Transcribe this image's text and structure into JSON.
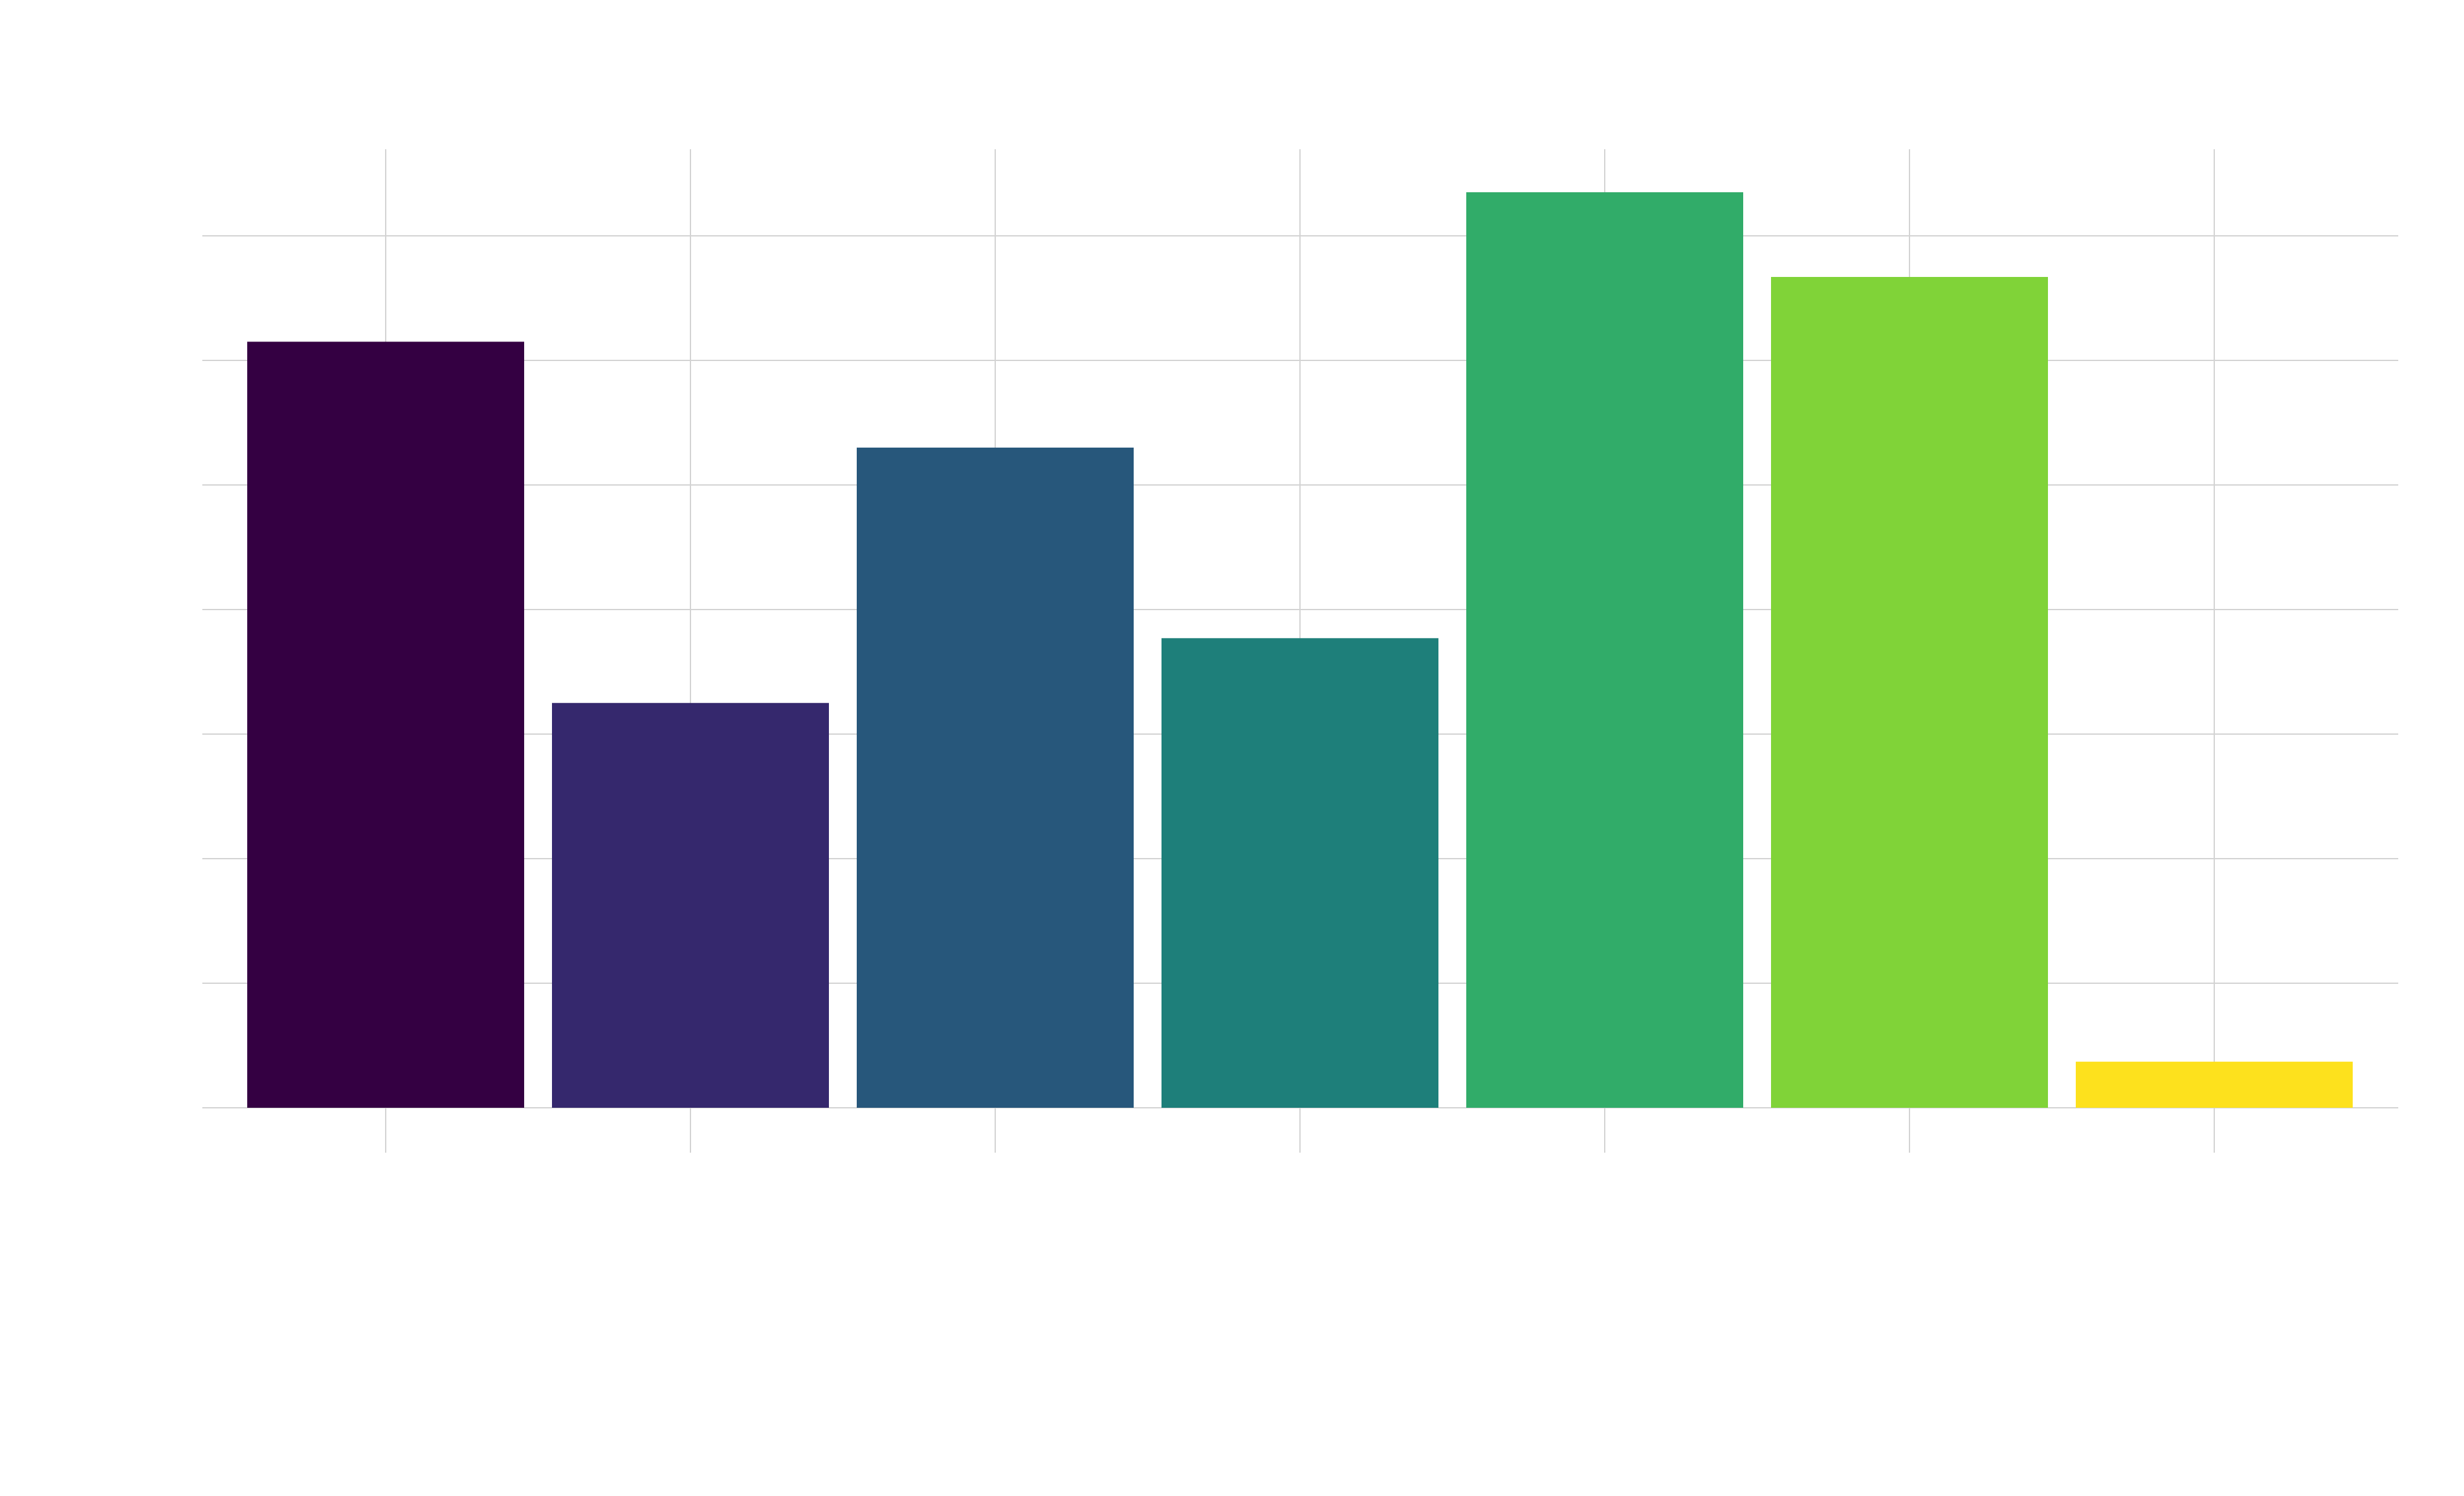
{
  "chart_data": {
    "type": "bar",
    "title": "",
    "xlabel": "",
    "ylabel": "",
    "categories": [
      "",
      "",
      "",
      "",
      "",
      "",
      ""
    ],
    "values": [
      6.15,
      3.25,
      5.3,
      3.77,
      7.35,
      6.67,
      0.37
    ],
    "colors": [
      "#340042",
      "#35286D",
      "#27577B",
      "#1E7F7A",
      "#31AC69",
      "#80D338",
      "#FDE11D"
    ],
    "ylim": [
      0,
      7.7
    ],
    "y_gridlines": [
      0,
      1,
      2,
      3,
      4,
      5,
      6,
      7
    ],
    "grid": true,
    "show_axis_labels": false,
    "legend": "none"
  }
}
